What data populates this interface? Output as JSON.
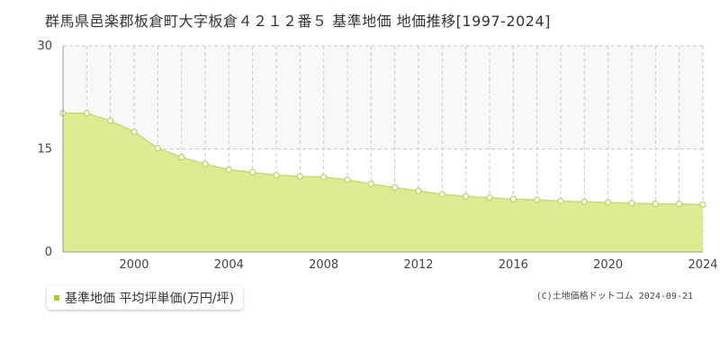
{
  "title": "群馬県邑楽郡板倉町大字板倉４２１２番５ 基準地価 地価推移[1997-2024]",
  "copyright": "(C)土地価格ドットコム 2024-09-21",
  "colors": {
    "area_fill": "#ddec93",
    "line": "#c5dc6a",
    "marker_stroke": "#b9d45a",
    "legend_swatch": "#a8cc2e",
    "grid": "#c9c9c9",
    "upper_band": "#f8f8f8"
  },
  "chart_data": {
    "type": "area",
    "title": "群馬県邑楽郡板倉町大字板倉４２１２番５ 基準地価 地価推移[1997-2024]",
    "xlabel": "",
    "ylabel": "",
    "x": [
      1997,
      1998,
      1999,
      2000,
      2001,
      2002,
      2003,
      2004,
      2005,
      2006,
      2007,
      2008,
      2009,
      2010,
      2011,
      2012,
      2013,
      2014,
      2015,
      2016,
      2017,
      2018,
      2019,
      2020,
      2021,
      2022,
      2023,
      2024
    ],
    "series": [
      {
        "name": "基準地価 平均坪単価(万円/坪)",
        "values": [
          20.2,
          20.2,
          19.1,
          17.5,
          15.1,
          13.8,
          12.8,
          12.0,
          11.6,
          11.2,
          11.0,
          10.9,
          10.5,
          9.9,
          9.4,
          8.9,
          8.4,
          8.1,
          7.9,
          7.7,
          7.6,
          7.4,
          7.3,
          7.2,
          7.1,
          7.0,
          7.0,
          6.9
        ]
      }
    ],
    "xlim": [
      1997,
      2024
    ],
    "ylim": [
      0,
      30
    ],
    "y_ticks": [
      0,
      15,
      30
    ],
    "x_tick_labels": [
      2000,
      2004,
      2008,
      2012,
      2016,
      2020,
      2024
    ],
    "grid": true,
    "legend": "bottom-left"
  },
  "legend": {
    "label": "基準地価 平均坪単価(万円/坪)"
  }
}
